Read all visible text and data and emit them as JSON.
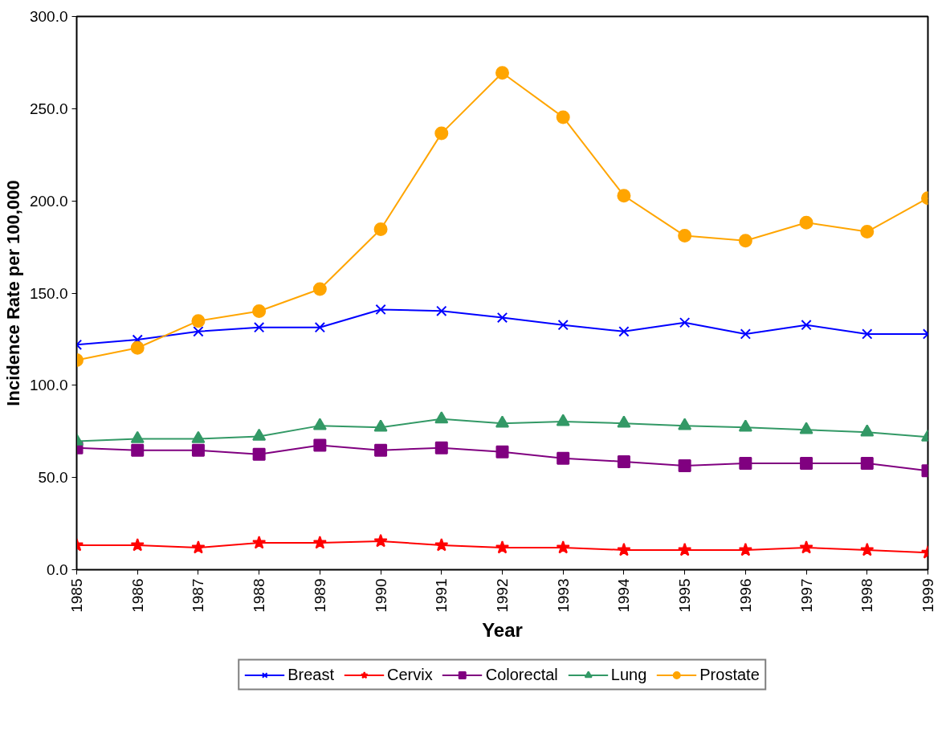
{
  "chart_data": {
    "type": "line",
    "xlabel": "Year",
    "ylabel": "Incidence Rate per 100,000",
    "x": [
      1985,
      1986,
      1987,
      1988,
      1989,
      1990,
      1991,
      1992,
      1993,
      1994,
      1995,
      1996,
      1997,
      1998,
      1999
    ],
    "xlim": [
      1985,
      1999
    ],
    "xticks": [
      1985,
      1986,
      1987,
      1988,
      1989,
      1990,
      1991,
      1992,
      1993,
      1994,
      1995,
      1996,
      1997,
      1998,
      1999
    ],
    "ylim": [
      0,
      300
    ],
    "yticks": [
      {
        "value": 0,
        "label": "0.0"
      },
      {
        "value": 50,
        "label": "50.0"
      },
      {
        "value": 100,
        "label": "100.0"
      },
      {
        "value": 150,
        "label": "150.0"
      },
      {
        "value": 200,
        "label": "200.0"
      },
      {
        "value": 250,
        "label": "250.0"
      },
      {
        "value": 300,
        "label": "300.0"
      }
    ],
    "grid": false,
    "legend": "bottom",
    "line_style": "solid",
    "series": [
      {
        "name": "Breast",
        "color": "#0000ff",
        "marker": "cross",
        "values": [
          122,
          124.7,
          129.2,
          131.4,
          131.4,
          141.1,
          140.3,
          136.7,
          132.7,
          129.2,
          134,
          127.8,
          132.7,
          127.8,
          127.8
        ]
      },
      {
        "name": "Cervix",
        "color": "#ff0000",
        "marker": "star",
        "values": [
          13.3,
          13.3,
          12,
          14.6,
          14.6,
          15.5,
          13.3,
          12,
          12,
          10.7,
          10.7,
          10.7,
          12,
          10.7,
          9.3
        ]
      },
      {
        "name": "Colorectal",
        "color": "#800080",
        "marker": "square",
        "values": [
          66.1,
          64.8,
          64.8,
          62.6,
          67.5,
          64.8,
          66.1,
          63.9,
          60.4,
          58.6,
          56.4,
          57.7,
          57.7,
          57.7,
          53.7
        ]
      },
      {
        "name": "Lung",
        "color": "#339966",
        "marker": "triangle",
        "values": [
          69.7,
          71,
          71,
          72.3,
          78.1,
          77.2,
          81.7,
          79.4,
          80.3,
          79.4,
          78.1,
          77.2,
          75.9,
          74.6,
          71.9
        ]
      },
      {
        "name": "Prostate",
        "color": "#ffa500",
        "marker": "circle",
        "values": [
          113.6,
          120.3,
          134.9,
          140.2,
          152.2,
          184.6,
          236.6,
          269.4,
          245.4,
          202.8,
          181.1,
          178.4,
          188.2,
          183.3,
          201.5
        ]
      }
    ]
  }
}
